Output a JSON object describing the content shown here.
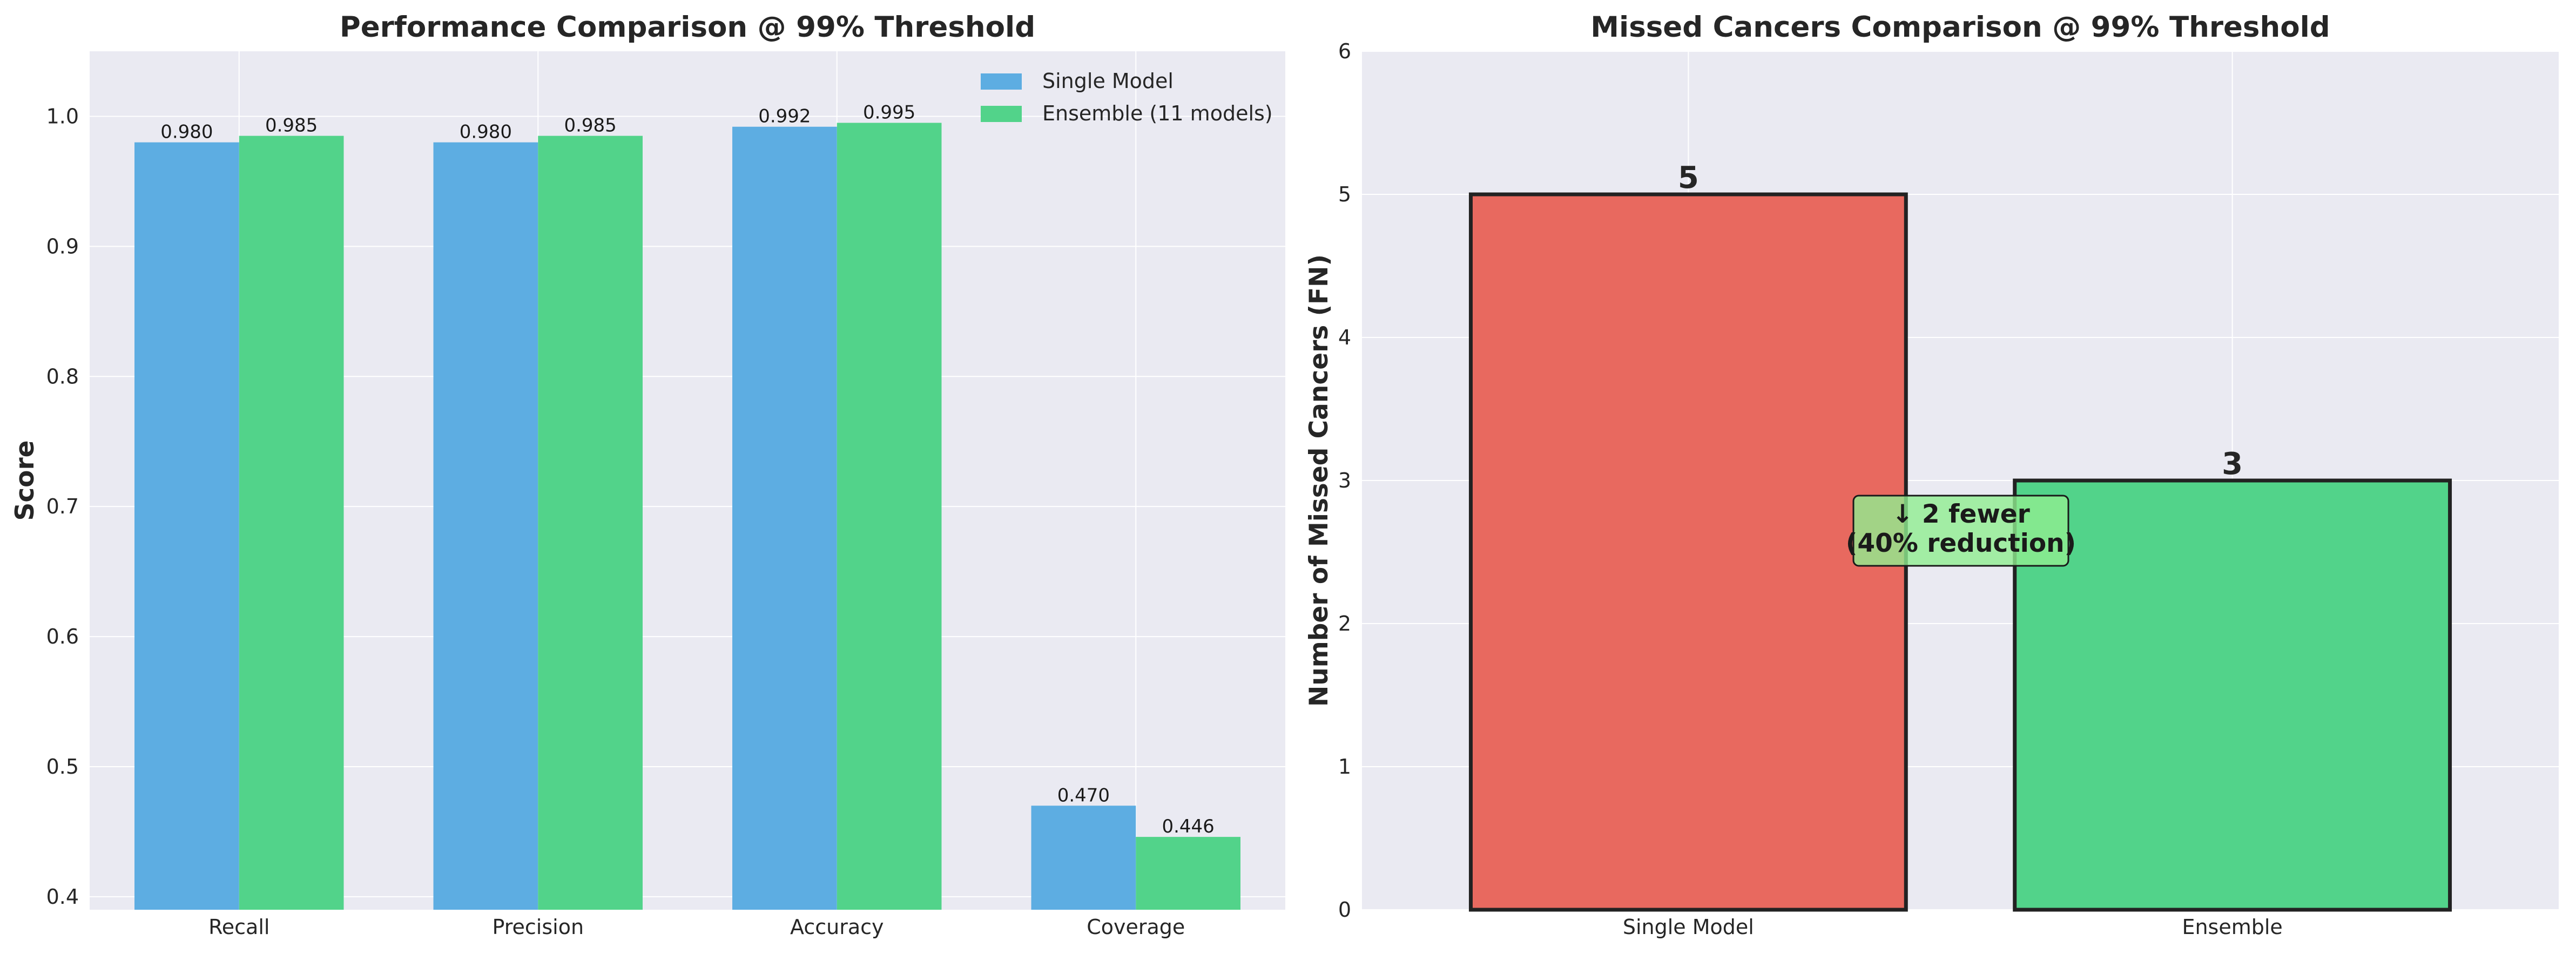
{
  "chart_data": [
    {
      "type": "bar",
      "title": "Performance Comparison @ 99% Threshold",
      "xlabel": "",
      "ylabel": "Score",
      "ylim": [
        0.39,
        1.05
      ],
      "yticks": [
        "0.4",
        "0.5",
        "0.6",
        "0.7",
        "0.8",
        "0.9",
        "1.0"
      ],
      "categories": [
        "Recall",
        "Precision",
        "Accuracy",
        "Coverage"
      ],
      "series": [
        {
          "name": "Single Model",
          "color": "#5DADE2",
          "values": [
            0.98,
            0.98,
            0.992,
            0.47
          ],
          "labels": [
            "0.980",
            "0.980",
            "0.992",
            "0.470"
          ]
        },
        {
          "name": "Ensemble (11 models)",
          "color": "#52D38A",
          "values": [
            0.985,
            0.985,
            0.995,
            0.446
          ],
          "labels": [
            "0.985",
            "0.985",
            "0.995",
            "0.446"
          ]
        }
      ],
      "legend": "top-right",
      "grid": true
    },
    {
      "type": "bar",
      "title": "Missed Cancers Comparison @ 99% Threshold",
      "xlabel": "",
      "ylabel": "Number of Missed Cancers (FN)",
      "ylim": [
        0,
        6
      ],
      "yticks": [
        "0",
        "1",
        "2",
        "3",
        "4",
        "5",
        "6"
      ],
      "categories": [
        "Single Model",
        "Ensemble"
      ],
      "values": [
        5,
        3
      ],
      "labels": [
        "5",
        "3"
      ],
      "colors": [
        "#E8695F",
        "#52D38A"
      ],
      "annotation": {
        "line1": "↓ 2 fewer",
        "line2": "(40% reduction)",
        "color": "#90EE90"
      },
      "grid": true
    }
  ]
}
